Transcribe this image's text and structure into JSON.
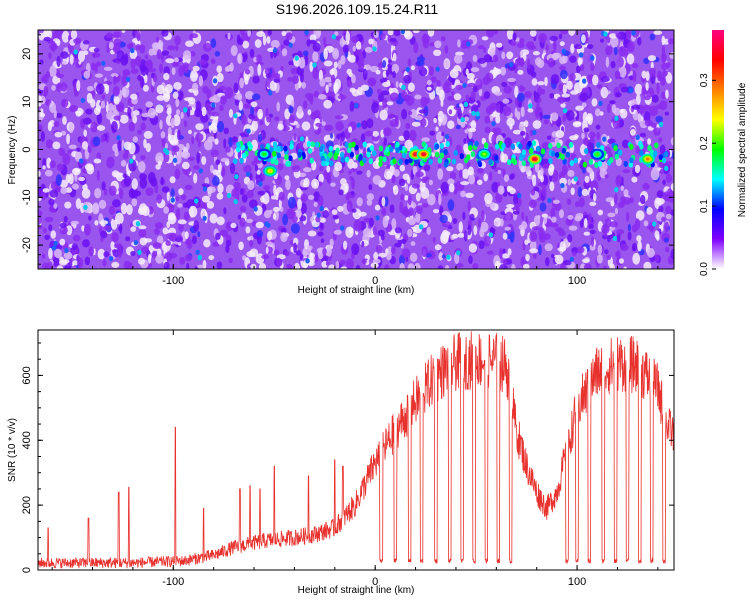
{
  "title": "S196.2026.109.15.24.R11",
  "chart_data": [
    {
      "type": "heatmap",
      "xlabel": "Height of straight line (km)",
      "ylabel": "Frequency (Hz)",
      "xlim": [
        -167,
        148
      ],
      "ylim": [
        -25,
        25
      ],
      "xticks": [
        -100,
        0,
        100
      ],
      "yticks": [
        -20,
        -10,
        0,
        10,
        20
      ],
      "colorbar": {
        "label": "Normalized spectral amplitude",
        "range": [
          0.0,
          0.38
        ],
        "ticks": [
          0.0,
          0.1,
          0.2,
          0.3
        ],
        "colors": [
          "#ffffff",
          "#8000ff",
          "#0000ff",
          "#00ffff",
          "#00ff00",
          "#ffff00",
          "#ff8000",
          "#ff0000",
          "#ff0080"
        ]
      },
      "signal": {
        "frequency": -1,
        "peaks": [
          {
            "x": -52,
            "f": -4.5,
            "amplitude": 0.22
          },
          {
            "x": -55,
            "f": -1,
            "amplitude": 0.15
          },
          {
            "x": 20,
            "f": -1,
            "amplitude": 0.34
          },
          {
            "x": 24,
            "f": -1,
            "amplitude": 0.33
          },
          {
            "x": 54,
            "f": -1,
            "amplitude": 0.18
          },
          {
            "x": 79,
            "f": -2,
            "amplitude": 0.34
          },
          {
            "x": 110,
            "f": -1,
            "amplitude": 0.16
          },
          {
            "x": 135,
            "f": -2,
            "amplitude": 0.26
          }
        ]
      }
    },
    {
      "type": "line",
      "xlabel": "Height of straight line (km)",
      "ylabel": "SNR (10 * v/v)",
      "xlim": [
        -167,
        148
      ],
      "ylim": [
        0,
        740
      ],
      "xticks": [
        -100,
        0,
        100
      ],
      "yticks": [
        0,
        200,
        400,
        600
      ],
      "color": "#e8302c",
      "envelope": [
        [
          -167,
          22
        ],
        [
          -120,
          22
        ],
        [
          -95,
          28
        ],
        [
          -80,
          45
        ],
        [
          -70,
          70
        ],
        [
          -55,
          90
        ],
        [
          -40,
          100
        ],
        [
          -30,
          110
        ],
        [
          -20,
          130
        ],
        [
          -10,
          200
        ],
        [
          0,
          330
        ],
        [
          10,
          430
        ],
        [
          20,
          520
        ],
        [
          30,
          600
        ],
        [
          40,
          640
        ],
        [
          50,
          650
        ],
        [
          60,
          645
        ],
        [
          65,
          630
        ],
        [
          70,
          430
        ],
        [
          75,
          320
        ],
        [
          80,
          240
        ],
        [
          85,
          190
        ],
        [
          90,
          240
        ],
        [
          95,
          370
        ],
        [
          100,
          500
        ],
        [
          110,
          610
        ],
        [
          120,
          640
        ],
        [
          130,
          630
        ],
        [
          140,
          560
        ],
        [
          145,
          440
        ],
        [
          148,
          420
        ]
      ],
      "dips": [
        3,
        10,
        17,
        23,
        30,
        37,
        43,
        49,
        55,
        61,
        67,
        95,
        100,
        106,
        113,
        119,
        125,
        131,
        137,
        143
      ],
      "spikes": [
        [
          -162,
          130
        ],
        [
          -142,
          160
        ],
        [
          -127,
          240
        ],
        [
          -122,
          255
        ],
        [
          -99,
          440
        ],
        [
          -85,
          190
        ],
        [
          -67,
          250
        ],
        [
          -62,
          260
        ],
        [
          -57,
          250
        ],
        [
          -50,
          320
        ],
        [
          -33,
          290
        ],
        [
          -20,
          340
        ],
        [
          -16,
          320
        ]
      ]
    }
  ]
}
